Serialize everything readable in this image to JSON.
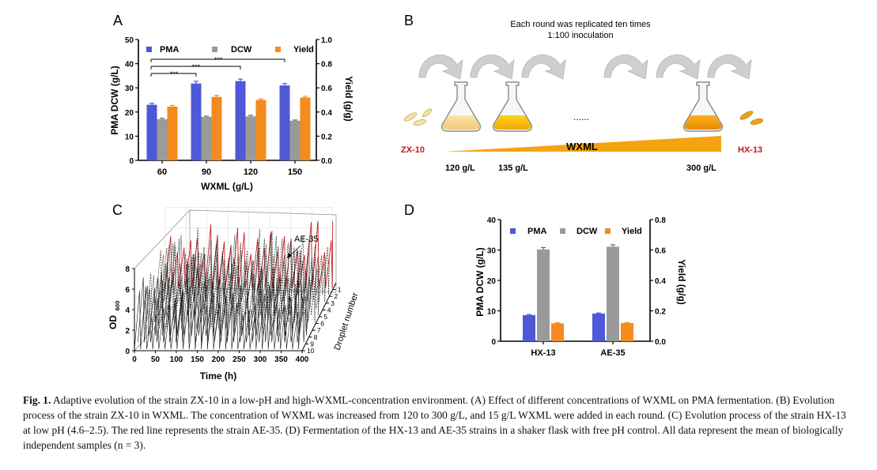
{
  "panels": {
    "A": {
      "letter": "A",
      "chart_data": {
        "type": "bar",
        "categories": [
          "60",
          "90",
          "120",
          "150"
        ],
        "series": [
          {
            "name": "PMA",
            "axis": "left",
            "values": [
              23,
              31.8,
              32.8,
              31
            ],
            "errors": [
              0.6,
              0.9,
              0.8,
              0.8
            ]
          },
          {
            "name": "DCW",
            "axis": "left",
            "values": [
              17,
              18,
              18.2,
              16.4
            ],
            "errors": [
              0.4,
              0.3,
              0.4,
              0.3
            ]
          },
          {
            "name": "Yield",
            "axis": "right",
            "values": [
              0.445,
              0.525,
              0.5,
              0.52
            ],
            "errors": [
              0.01,
              0.012,
              0.008,
              0.01
            ]
          }
        ],
        "xlabel": "WXML (g/L)",
        "ylabel": "PMA DCW (g/L)",
        "y2label": "Yield (g/g)",
        "ylim": [
          0,
          50
        ],
        "y2lim": [
          0,
          1.0
        ],
        "yticks": [
          "0",
          "10",
          "20",
          "30",
          "40",
          "50"
        ],
        "y2ticks": [
          "0.0",
          "0.2",
          "0.4",
          "0.6",
          "0.8",
          "1.0"
        ],
        "significance": [
          "***",
          "***",
          "***"
        ],
        "colors": {
          "PMA": "#4f58d6",
          "DCW": "#9a9a9a",
          "Yield": "#f58a1f"
        }
      }
    },
    "B": {
      "letter": "B",
      "title_line1": "Each round was replicated ten times",
      "title_line2": "1:100 inoculation",
      "start_strain": "ZX-10",
      "end_strain": "HX-13",
      "gradient_label": "WXML",
      "ellipsis": "......",
      "concentrations": [
        "120 g/L",
        "135 g/L",
        "300 g/L"
      ],
      "colors": {
        "gradient": "#f5a312",
        "strain": "#c0181f",
        "arrow": "#c8c8c8"
      }
    },
    "C": {
      "letter": "C",
      "chart_data": {
        "type": "line",
        "title": "",
        "xlabel": "Time (h)",
        "ylabel": "OD600",
        "ylabel_main": "OD",
        "ylabel_sub": "600",
        "zlabel": "Droplet number",
        "xticks": [
          "0",
          "50",
          "100",
          "150",
          "200",
          "250",
          "300",
          "350",
          "400"
        ],
        "yticks": [
          "0",
          "2",
          "4",
          "6",
          "8"
        ],
        "zticks": [
          "1",
          "2",
          "3",
          "4",
          "5",
          "6",
          "7",
          "8",
          "9",
          "10"
        ],
        "xlim": [
          0,
          400
        ],
        "ylim": [
          0,
          8
        ],
        "annotation": "AE-35",
        "highlight_series": "AE-35",
        "highlight_color": "#cc2222"
      }
    },
    "D": {
      "letter": "D",
      "chart_data": {
        "type": "bar",
        "categories": [
          "HX-13",
          "AE-35"
        ],
        "series": [
          {
            "name": "PMA",
            "axis": "left",
            "values": [
              8.6,
              9.1
            ],
            "errors": [
              0.2,
              0.2
            ]
          },
          {
            "name": "DCW",
            "axis": "left",
            "values": [
              30.2,
              31.1
            ],
            "errors": [
              0.6,
              0.6
            ]
          },
          {
            "name": "Yield",
            "axis": "right",
            "values": [
              0.118,
              0.12
            ],
            "errors": [
              0.004,
              0.004
            ]
          }
        ],
        "ylabel": "PMA DCW (g/L)",
        "y2label": "Yield (g/g)",
        "ylim": [
          0,
          40
        ],
        "y2lim": [
          0,
          0.8
        ],
        "yticks": [
          "0",
          "10",
          "20",
          "30",
          "40"
        ],
        "y2ticks": [
          "0.0",
          "0.2",
          "0.4",
          "0.6",
          "0.8"
        ],
        "colors": {
          "PMA": "#4f58d6",
          "DCW": "#9a9a9a",
          "Yield": "#f58a1f"
        }
      }
    }
  },
  "caption": {
    "label": "Fig. 1.",
    "text": "Adaptive evolution of the strain ZX-10 in a low-pH and high-WXML-concentration environment. (A) Effect of different concentrations of WXML on PMA fermentation. (B) Evolution process of the strain ZX-10 in WXML. The concentration of WXML was increased from 120 to 300 g/L, and 15 g/L WXML were added in each round. (C) Evolution process of the strain HX-13 at low pH (4.6–2.5). The red line represents the strain AE-35. (D) Fermentation of the HX-13 and AE-35 strains in a shaker flask with free pH control. All data represent the mean of biologically independent samples (n = 3)."
  }
}
